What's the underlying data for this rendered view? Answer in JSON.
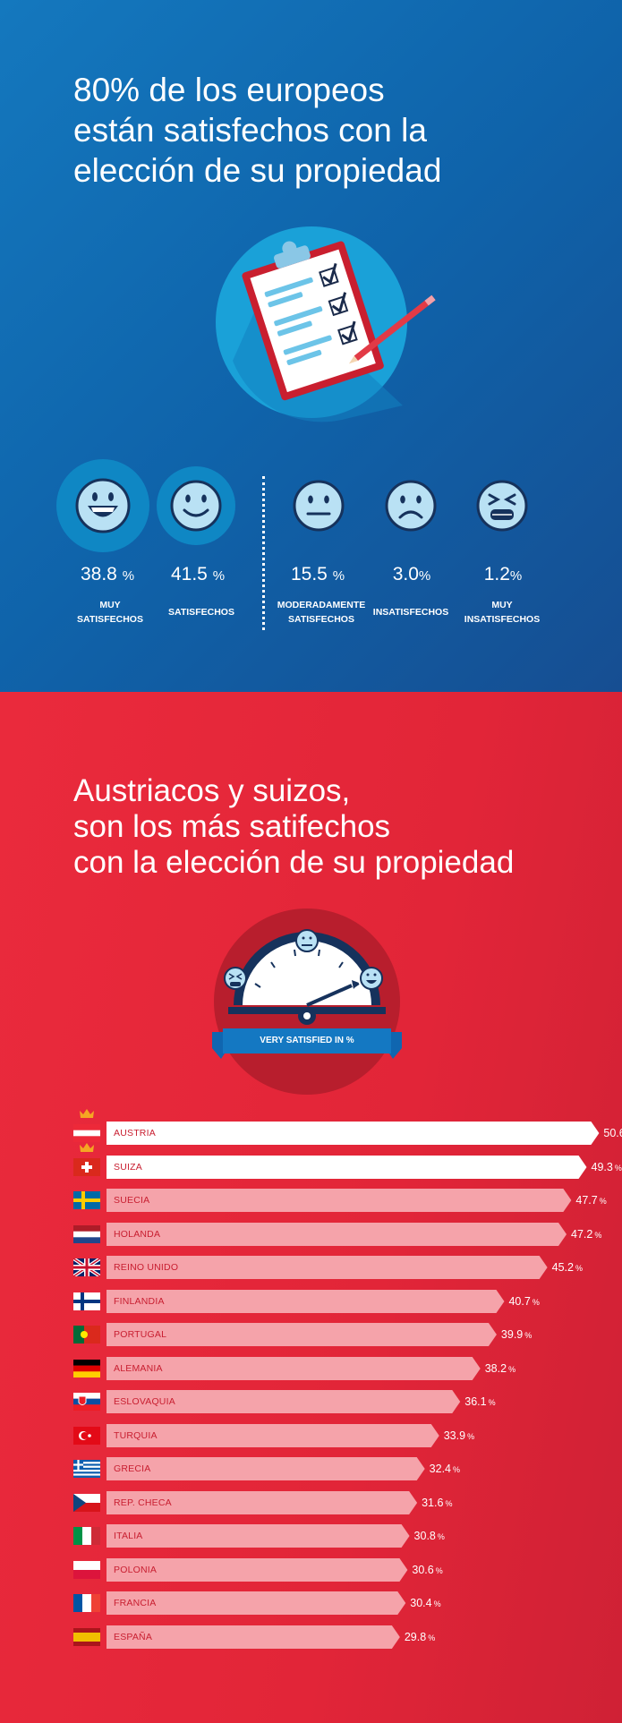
{
  "top": {
    "title_lines": [
      "80% de los europeos",
      "están satisfechos con la",
      "elección de su propiedad"
    ],
    "faces": [
      {
        "icon": "very-happy-face-icon",
        "value": "38.8",
        "unit": "%",
        "label_lines": [
          "MUY",
          "SATISFECHOS"
        ]
      },
      {
        "icon": "happy-face-icon",
        "value": "41.5",
        "unit": "%",
        "label_lines": [
          "SATISFECHOS",
          ""
        ]
      },
      {
        "icon": "neutral-face-icon",
        "value": "15.5",
        "unit": "%",
        "label_lines": [
          "MODERADAMENTE",
          "SATISFECHOS"
        ]
      },
      {
        "icon": "sad-face-icon",
        "value": "3.0",
        "unit": "%",
        "label_lines": [
          "INSATISFECHOS",
          ""
        ]
      },
      {
        "icon": "very-sad-face-icon",
        "value": "1.2",
        "unit": "%",
        "label_lines": [
          "MUY",
          "INSATISFECHOS"
        ]
      }
    ]
  },
  "bottom": {
    "title_lines": [
      "Austriacos y suizos,",
      "son los más satifechos",
      "con la elección de su propiedad"
    ],
    "gauge_banner": "VERY SATISFIED IN %"
  },
  "colors": {
    "blue_bg": "#1468b0",
    "red_bg": "#e5283a",
    "top_bar": "#ffffff",
    "other_bar": "#f5a3aa",
    "label_text": "#c81e30"
  },
  "chart_data": {
    "type": "bar",
    "orientation": "horizontal",
    "title": "VERY SATISFIED IN %",
    "unit": "%",
    "categories": [
      "AUSTRIA",
      "SUIZA",
      "SUECIA",
      "HOLANDA",
      "REINO UNIDO",
      "FINLANDIA",
      "PORTUGAL",
      "ALEMANIA",
      "ESLOVAQUIA",
      "TURQUIA",
      "GRECIA",
      "REP. CHECA",
      "ITALIA",
      "POLONIA",
      "FRANCIA",
      "ESPAÑA"
    ],
    "values": [
      50.6,
      49.3,
      47.7,
      47.2,
      45.2,
      40.7,
      39.9,
      38.2,
      36.1,
      33.9,
      32.4,
      31.6,
      30.8,
      30.6,
      30.4,
      29.8
    ],
    "highlighted": [
      "AUSTRIA",
      "SUIZA"
    ]
  }
}
